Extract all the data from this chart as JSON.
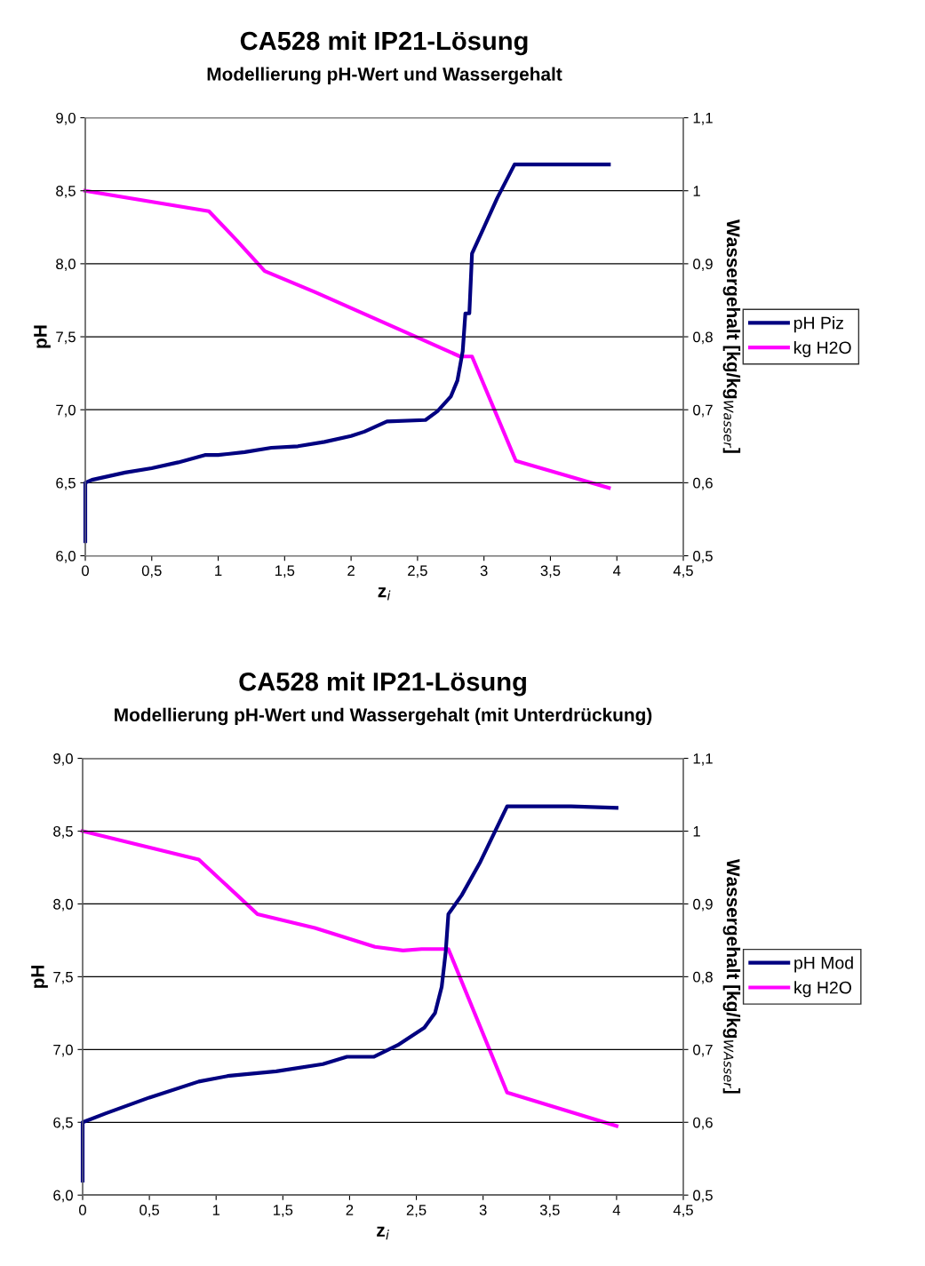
{
  "chart_data": [
    {
      "type": "line",
      "title": "CA528 mit IP21-Lösung",
      "subtitle": "Modellierung pH-Wert und Wassergehalt",
      "xlabel": "z$_{i}$",
      "ylabel": "pH",
      "y2label": "Wassergehalt [kg/kg$_{Wasser}$]",
      "xlim": [
        0,
        4.5
      ],
      "xticks": [
        0,
        {
          "value": 0.5,
          "label": "0,5"
        },
        1,
        {
          "value": 1.5,
          "label": "1,5"
        },
        2,
        {
          "value": 2.5,
          "label": "2,5"
        },
        3,
        {
          "value": 3.5,
          "label": "3,5"
        },
        4,
        {
          "value": 4.5,
          "label": "4,5"
        }
      ],
      "ylim": [
        6.0,
        9.0
      ],
      "yticks": [
        {
          "value": 6.0,
          "label": "6,0"
        },
        {
          "value": 6.5,
          "label": "6,5"
        },
        {
          "value": 7.0,
          "label": "7,0"
        },
        {
          "value": 7.5,
          "label": "7,5"
        },
        {
          "value": 8.0,
          "label": "8,0"
        },
        {
          "value": 8.5,
          "label": "8,5"
        },
        {
          "value": 9.0,
          "label": "9,0"
        }
      ],
      "y2lim": [
        0.5,
        1.1
      ],
      "y2ticks": [
        {
          "value": 0.5,
          "label": "0,5"
        },
        {
          "value": 0.6,
          "label": "0,6"
        },
        {
          "value": 0.7,
          "label": "0,7"
        },
        {
          "value": 0.8,
          "label": "0,8"
        },
        {
          "value": 0.9,
          "label": "0,9"
        },
        1,
        {
          "value": 1.1,
          "label": "1,1"
        }
      ],
      "grid": "y",
      "legend": "right",
      "marker": "none",
      "line_style": "solid",
      "series": [
        {
          "name": "pH Piz",
          "color": "#000080",
          "x": [
            0,
            0,
            0.05,
            0.3,
            0.5,
            0.7,
            0.9,
            1.0,
            1.2,
            1.4,
            1.6,
            1.8,
            2.0,
            2.1,
            2.27,
            2.56,
            2.65,
            2.75,
            2.8,
            2.84,
            2.86,
            2.89,
            2.91,
            3.0,
            3.1,
            3.23,
            3.94
          ],
          "values": [
            6.1,
            6.5,
            6.52,
            6.57,
            6.6,
            6.64,
            6.69,
            6.69,
            6.71,
            6.74,
            6.75,
            6.78,
            6.82,
            6.85,
            6.92,
            6.93,
            6.99,
            7.09,
            7.2,
            7.4,
            7.66,
            7.66,
            8.07,
            8.25,
            8.45,
            8.68,
            8.68
          ]
        },
        {
          "name": "kg H2O",
          "color": "#ff00ff",
          "axis": "y2",
          "x": [
            0,
            0.93,
            1.14,
            1.35,
            1.73,
            2.5,
            2.82,
            2.91,
            3.24,
            3.94
          ],
          "values": [
            1.0,
            0.972,
            0.932,
            0.89,
            0.861,
            0.799,
            0.773,
            0.773,
            0.63,
            0.593
          ]
        }
      ]
    },
    {
      "type": "line",
      "title": "CA528 mit IP21-Lösung",
      "subtitle": "Modellierung pH-Wert und Wassergehalt (mit Unterdrückung)",
      "xlabel": "z$_{i}$",
      "ylabel": "pH",
      "y2label": "Wassergehalt [kg/kg$_{WAsser}$]",
      "xlim": [
        0,
        4.5
      ],
      "xticks": [
        0,
        {
          "value": 0.5,
          "label": "0,5"
        },
        1,
        {
          "value": 1.5,
          "label": "1,5"
        },
        2,
        {
          "value": 2.5,
          "label": "2,5"
        },
        3,
        {
          "value": 3.5,
          "label": "3,5"
        },
        4,
        {
          "value": 4.5,
          "label": "4,5"
        }
      ],
      "ylim": [
        6.0,
        9.0
      ],
      "yticks": [
        {
          "value": 6.0,
          "label": "6,0"
        },
        {
          "value": 6.5,
          "label": "6,5"
        },
        {
          "value": 7.0,
          "label": "7,0"
        },
        {
          "value": 7.5,
          "label": "7,5"
        },
        {
          "value": 8.0,
          "label": "8,0"
        },
        {
          "value": 8.5,
          "label": "8,5"
        },
        {
          "value": 9.0,
          "label": "9,0"
        }
      ],
      "y2lim": [
        0.5,
        1.1
      ],
      "y2ticks": [
        {
          "value": 0.5,
          "label": "0,5"
        },
        {
          "value": 0.6,
          "label": "0,6"
        },
        {
          "value": 0.7,
          "label": "0,7"
        },
        {
          "value": 0.8,
          "label": "0,8"
        },
        {
          "value": 0.9,
          "label": "0,9"
        },
        1,
        {
          "value": 1.1,
          "label": "1,1"
        }
      ],
      "grid": "y",
      "legend": "right",
      "marker": "none",
      "line_style": "solid",
      "series": [
        {
          "name": "pH Mod",
          "color": "#000080",
          "x": [
            0,
            0,
            0.17,
            0.5,
            0.87,
            1.1,
            1.45,
            1.8,
            1.98,
            2.18,
            2.36,
            2.56,
            2.64,
            2.69,
            2.72,
            2.74,
            2.84,
            2.98,
            3.18,
            3.66,
            4.0
          ],
          "values": [
            6.1,
            6.5,
            6.56,
            6.67,
            6.78,
            6.82,
            6.85,
            6.9,
            6.95,
            6.95,
            7.03,
            7.15,
            7.25,
            7.43,
            7.67,
            7.93,
            8.06,
            8.29,
            8.67,
            8.67,
            8.66
          ]
        },
        {
          "name": "kg H2O",
          "color": "#ff00ff",
          "axis": "y2",
          "x": [
            0,
            0.87,
            1.31,
            1.74,
            2.19,
            2.4,
            2.54,
            2.74,
            3.18,
            4.0
          ],
          "values": [
            1.0,
            0.961,
            0.886,
            0.867,
            0.841,
            0.836,
            0.838,
            0.838,
            0.641,
            0.595
          ]
        }
      ]
    }
  ]
}
